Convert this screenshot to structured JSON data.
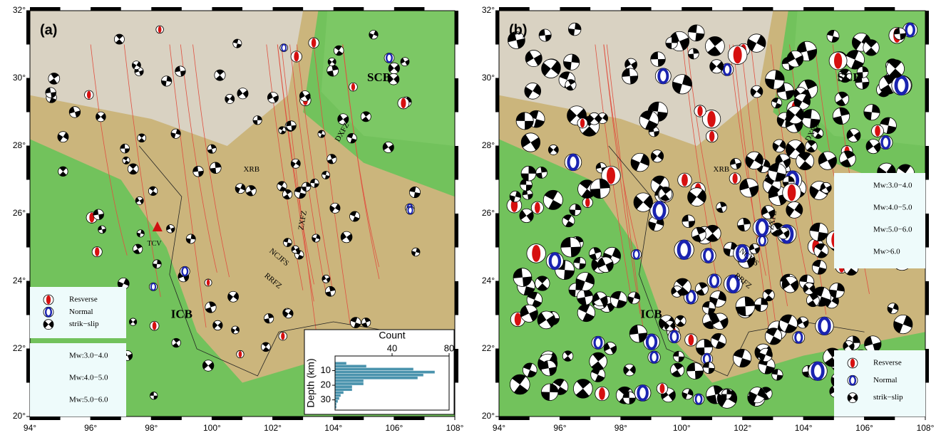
{
  "map": {
    "xlim": [
      94,
      108
    ],
    "ylim": [
      20,
      32
    ],
    "xticks": [
      {
        "value": 94,
        "label": "94°"
      },
      {
        "value": 96,
        "label": "96°"
      },
      {
        "value": 98,
        "label": "98°"
      },
      {
        "value": 100,
        "label": "100°"
      },
      {
        "value": 102,
        "label": "102°"
      },
      {
        "value": 104,
        "label": "104°"
      },
      {
        "value": 106,
        "label": "106°"
      },
      {
        "value": 108,
        "label": "108°"
      }
    ],
    "yticks": [
      {
        "value": 20,
        "label": "20°"
      },
      {
        "value": 22,
        "label": "22°"
      },
      {
        "value": 24,
        "label": "24°"
      },
      {
        "value": 26,
        "label": "26°"
      },
      {
        "value": 28,
        "label": "28°"
      },
      {
        "value": 30,
        "label": "30°"
      },
      {
        "value": 32,
        "label": "32°"
      }
    ]
  },
  "panel_a": {
    "label": "(a)",
    "regions": [
      "SCB",
      "ICB"
    ],
    "faults": [
      "DXFZ",
      "XRB",
      "ZXFZ",
      "NCJFS",
      "RRFZ"
    ],
    "volcano": "TCV",
    "legend_type": [
      "Resverse",
      "Normal",
      "strik−slip"
    ],
    "legend_size": [
      "Mw:3.0−4.0",
      "Mw:4.0−5.0",
      "Mw:5.0−6.0"
    ]
  },
  "panel_b": {
    "label": "(b)",
    "regions": [
      "SCB",
      "ICB"
    ],
    "faults": [
      "DXFZ",
      "XRB",
      "ZXFZ",
      "NCJFS",
      "RRFZ"
    ],
    "legend_type": [
      "Resverse",
      "Normal",
      "strik−slip"
    ],
    "legend_size": [
      "Mw:3.0−4.0",
      "Mw:4.0−5.0",
      "Mw:5.0−6.0",
      "Mw>6.0"
    ]
  },
  "inset_histogram": {
    "xlabel": "Count",
    "ylabel": "Depth (km)",
    "xlim": [
      0,
      80
    ],
    "xticks": [
      40,
      80
    ],
    "ylim": [
      0,
      37
    ],
    "yticks": [
      10,
      20,
      30
    ],
    "bins": [
      4,
      6,
      8,
      10,
      12,
      14,
      16,
      18,
      20,
      22,
      24,
      26,
      28,
      30,
      32,
      34,
      36
    ],
    "counts": [
      8,
      22,
      55,
      70,
      62,
      58,
      20,
      20,
      12,
      12,
      6,
      4,
      3,
      2,
      1,
      1
    ]
  }
}
